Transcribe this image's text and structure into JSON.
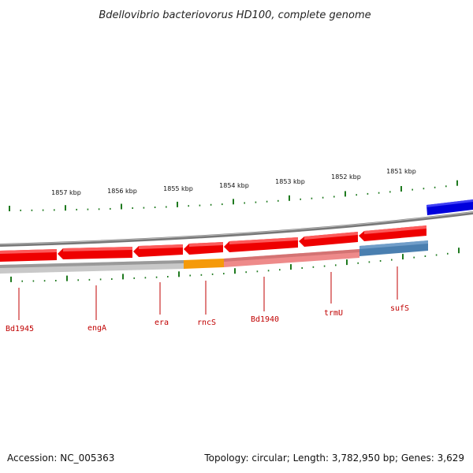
{
  "title": "Bdellovibrio bacteriovorus HD100, complete genome",
  "accession_text": "Accession: NC_005363",
  "summary_text": "Topology: circular; Length: 3,782,950 bp; Genes: 3,629",
  "colors": {
    "gene_red": "#ee0000",
    "gene_blue": "#0000dd",
    "highlight_orange": "#f59a0a",
    "highlight_pink": "#ee8a8a",
    "highlight_steel": "#4a7fb0",
    "tick_green": "#1f7a1f",
    "label_red": "#c00000"
  },
  "scale_labels": [
    {
      "text": "1857 kbp"
    },
    {
      "text": "1856 kbp"
    },
    {
      "text": "1855 kbp"
    },
    {
      "text": "1854 kbp"
    },
    {
      "text": "1853 kbp"
    },
    {
      "text": "1852 kbp"
    },
    {
      "text": "1851 kbp"
    }
  ],
  "gene_labels": [
    {
      "text": "Bd1945"
    },
    {
      "text": "engA"
    },
    {
      "text": "era"
    },
    {
      "text": "rncS"
    },
    {
      "text": "Bd1940"
    },
    {
      "text": "trmU"
    },
    {
      "text": "sufS"
    }
  ]
}
